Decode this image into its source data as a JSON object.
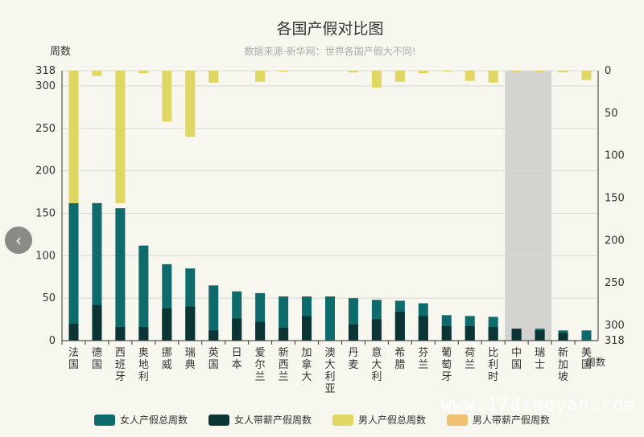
{
  "watermark": "www.17diaoyan.com",
  "nav": {
    "prev_icon": "chevron-left-icon",
    "prev_glyph": "‹"
  },
  "chart_data": {
    "type": "bar",
    "title": "各国产假对比图",
    "subtitle": "数据来源-新华网：世界各国产假大不同!",
    "ylabel": "周数",
    "y2label": "周数",
    "ylim": [
      0,
      318
    ],
    "y2lim": [
      318,
      0
    ],
    "yticks": [
      0,
      50,
      100,
      150,
      200,
      250,
      300,
      318
    ],
    "y2ticks": [
      0,
      50,
      100,
      150,
      200,
      250,
      300,
      318
    ],
    "grid": true,
    "legend_position": "bottom",
    "highlight_category": "中国",
    "categories": [
      "法国",
      "德国",
      "西班牙",
      "奥地利",
      "挪威",
      "瑞典",
      "英国",
      "日本",
      "爱尔兰",
      "新西兰",
      "加拿大",
      "澳大利亚",
      "丹麦",
      "意大利",
      "希腊",
      "芬兰",
      "葡萄牙",
      "荷兰",
      "比利时",
      "中国",
      "瑞士",
      "新加坡",
      "美国"
    ],
    "series": [
      {
        "name": "女人产假总周数",
        "axis": "left",
        "color": "#0d6b6b",
        "values": [
          162,
          162,
          156,
          112,
          90,
          85,
          65,
          58,
          56,
          52,
          52,
          52,
          50,
          48,
          47,
          44,
          30,
          29,
          28,
          14,
          14,
          12,
          12
        ]
      },
      {
        "name": "女人带薪产假周数",
        "axis": "left",
        "color": "#0b3535",
        "values": [
          20,
          42,
          16,
          16,
          38,
          40,
          12,
          26,
          22,
          15,
          29,
          0,
          19,
          25,
          34,
          29,
          17,
          17,
          16,
          14,
          12,
          9,
          0
        ]
      },
      {
        "name": "男人产假总周数",
        "axis": "right",
        "color": "#e0d662",
        "values": [
          156,
          6,
          156,
          3,
          60,
          78,
          14,
          0,
          13,
          1,
          0,
          0,
          2,
          20,
          13,
          3,
          1,
          12,
          14,
          1,
          1,
          2,
          11
        ]
      },
      {
        "name": "男人带薪产假周数",
        "axis": "right",
        "color": "#efc070",
        "values": [
          0,
          0,
          0,
          0,
          0,
          0,
          0,
          0,
          0,
          0,
          0,
          0,
          0,
          0,
          0,
          0,
          0,
          0,
          0,
          0,
          0,
          0,
          0
        ]
      }
    ]
  }
}
